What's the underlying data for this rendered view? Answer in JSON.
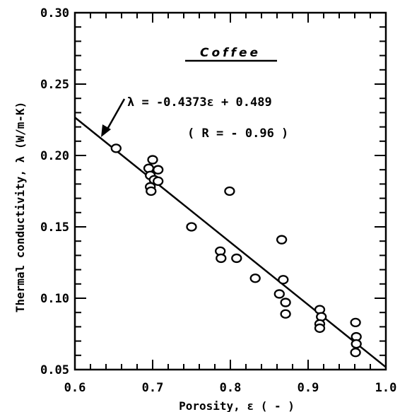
{
  "chart_data": {
    "type": "scatter",
    "title": "Coffee",
    "xlabel": "Porosity, ε ( - )",
    "ylabel": "Thermal conductivity, λ (W/m-K)",
    "xlim": [
      0.6,
      1.0
    ],
    "ylim": [
      0.05,
      0.3
    ],
    "xticks": [
      "0.6",
      "0.7",
      "0.8",
      "0.9",
      "1.0"
    ],
    "yticks": [
      "0.05",
      "0.10",
      "0.15",
      "0.20",
      "0.25",
      "0.30"
    ],
    "grid": false,
    "marker": "open-circle",
    "series": [
      {
        "points": [
          [
            0.653,
            0.205
          ],
          [
            0.695,
            0.191
          ],
          [
            0.7,
            0.197
          ],
          [
            0.707,
            0.19
          ],
          [
            0.697,
            0.186
          ],
          [
            0.702,
            0.183
          ],
          [
            0.707,
            0.182
          ],
          [
            0.697,
            0.178
          ],
          [
            0.698,
            0.175
          ],
          [
            0.75,
            0.15
          ],
          [
            0.799,
            0.175
          ],
          [
            0.787,
            0.133
          ],
          [
            0.788,
            0.128
          ],
          [
            0.808,
            0.128
          ],
          [
            0.832,
            0.114
          ],
          [
            0.866,
            0.141
          ],
          [
            0.868,
            0.113
          ],
          [
            0.863,
            0.103
          ],
          [
            0.871,
            0.097
          ],
          [
            0.871,
            0.089
          ],
          [
            0.915,
            0.092
          ],
          [
            0.917,
            0.087
          ],
          [
            0.915,
            0.082
          ],
          [
            0.915,
            0.079
          ],
          [
            0.961,
            0.083
          ],
          [
            0.962,
            0.073
          ],
          [
            0.962,
            0.068
          ],
          [
            0.961,
            0.062
          ]
        ]
      }
    ],
    "fit_line": {
      "slope": -0.4373,
      "intercept": 0.489,
      "x_range": [
        0.6,
        1.0
      ]
    },
    "annotations": {
      "equation": "λ = -0.4373ε + 0.489",
      "correlation": "( R = - 0.96 )"
    }
  }
}
